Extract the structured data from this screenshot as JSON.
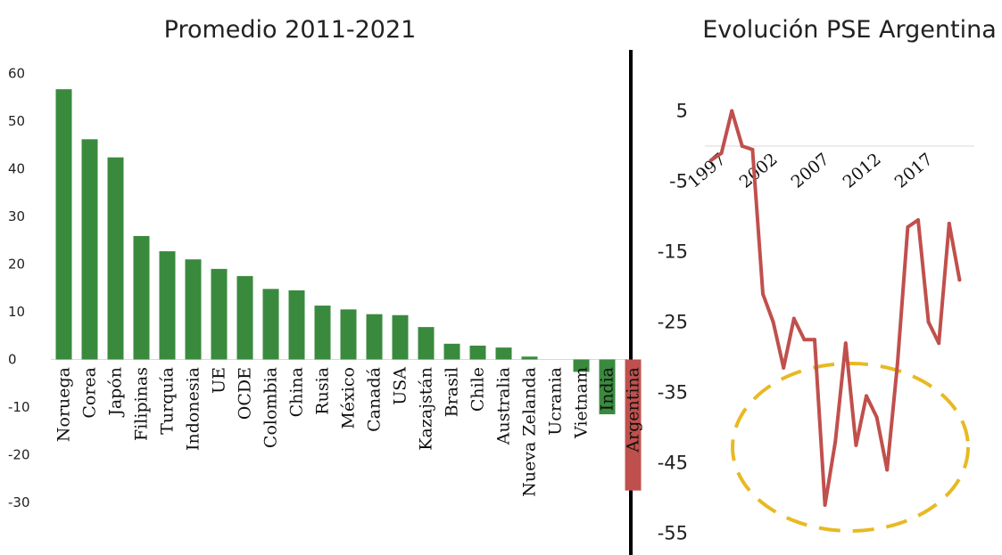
{
  "chart_data": [
    {
      "type": "bar",
      "title": "Promedio 2011-2021",
      "categories": [
        "Noruega",
        "Corea",
        "Japón",
        "Filipinas",
        "Turquía",
        "Indonesia",
        "UE",
        "OCDE",
        "Colombia",
        "China",
        "Rusia",
        "México",
        "Canadá",
        "USA",
        "Kazajstán",
        "Brasil",
        "Chile",
        "Australia",
        "Nueva Zelanda",
        "Ucrania",
        "Vietnam",
        "India",
        "Argentina"
      ],
      "values": [
        56.7,
        46.2,
        42.4,
        25.9,
        22.7,
        21.0,
        19.0,
        17.5,
        14.8,
        14.5,
        11.3,
        10.5,
        9.5,
        9.3,
        6.8,
        3.3,
        2.9,
        2.5,
        0.6,
        0.0,
        -2.6,
        -11.5,
        -27.5
      ],
      "highlight": "Argentina",
      "ylim": [
        -30,
        60
      ],
      "yticks": [
        -30,
        -20,
        -10,
        0,
        10,
        20,
        30,
        40,
        50,
        60
      ],
      "colors": {
        "bar": "#3a8a3e",
        "highlight": "#c0504d"
      },
      "xlabel": "",
      "ylabel": ""
    },
    {
      "type": "line",
      "title": "Evolución PSE Argentina",
      "x": [
        1997,
        1998,
        1999,
        2000,
        2001,
        2002,
        2003,
        2004,
        2005,
        2006,
        2007,
        2008,
        2009,
        2010,
        2011,
        2012,
        2013,
        2014,
        2015,
        2016,
        2017,
        2018,
        2019,
        2020,
        2021
      ],
      "values": [
        -2,
        -1,
        5,
        0,
        -0.5,
        -21,
        -25,
        -31.5,
        -24.5,
        -27.5,
        -27.5,
        -51,
        -42,
        -28,
        -42.5,
        -35.5,
        -38.5,
        -46,
        -31,
        -11.5,
        -10.5,
        -25,
        -28,
        -11,
        -19
      ],
      "xticks": [
        "1997",
        "2002",
        "2007",
        "2012",
        "2017"
      ],
      "yticks": [
        5,
        -5,
        -15,
        -25,
        -35,
        -45,
        -55
      ],
      "ylim": [
        -55,
        5
      ],
      "colors": {
        "line": "#c0504d",
        "zero_line": "#d9d9d9",
        "ellipse": "#e8b923"
      },
      "annotation": "dashed ellipse highlighting 2008-2016 lows",
      "xlabel": "",
      "ylabel": ""
    }
  ]
}
